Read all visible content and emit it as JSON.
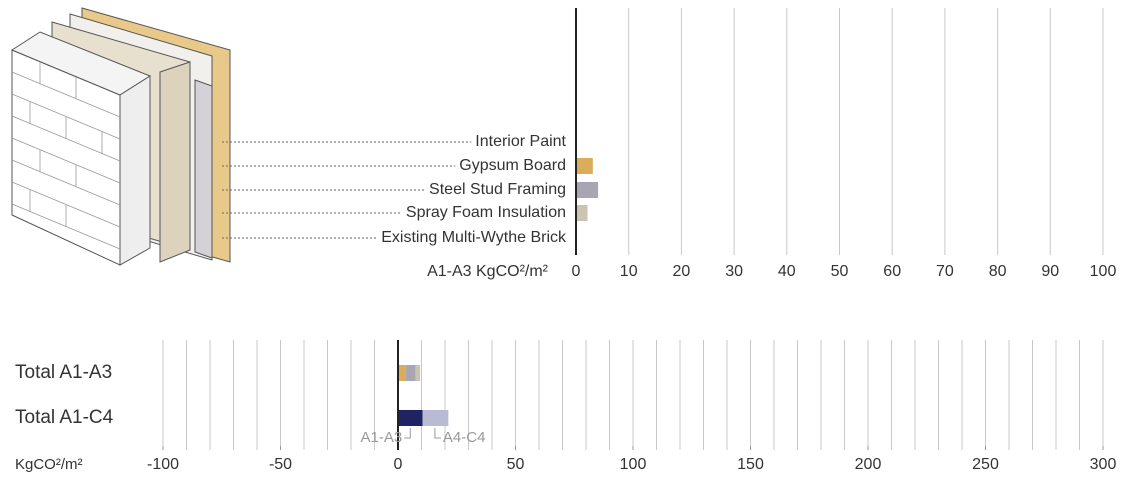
{
  "chart_data": [
    {
      "type": "bar",
      "orientation": "horizontal",
      "categories": [
        "Interior Paint",
        "Gypsum Board",
        "Steel Stud Framing",
        "Spray Foam Insulation",
        "Existing Multi-Wythe Brick"
      ],
      "values": [
        0,
        3,
        4,
        2,
        0
      ],
      "colors": [
        "#d9ad5a",
        "#d9ad5a",
        "#a9a6b3",
        "#cbc3b3",
        "#cbc3b3"
      ],
      "x_label": "A1-A3 KgCO²/m²",
      "xlim": [
        0,
        100
      ],
      "xticks": [
        0,
        10,
        20,
        30,
        40,
        50,
        60,
        70,
        80,
        90,
        100
      ],
      "grid": true
    },
    {
      "type": "stacked_bar",
      "orientation": "horizontal",
      "categories": [
        "Total A1-A3",
        "Total A1-C4"
      ],
      "segments": [
        {
          "color": "#d9ad5a",
          "value": 3
        },
        {
          "color": "#a9a6b3",
          "value": 4
        },
        {
          "color": "#cbc3b3",
          "value": 2
        }
      ],
      "series": [
        {
          "name": "A1-A3",
          "color": "#1f2363",
          "values": [
            null,
            10
          ]
        },
        {
          "name": "A4-C4",
          "color": "#b9bad4",
          "values": [
            null,
            11
          ]
        }
      ],
      "x_label": "KgCO²/m²",
      "xlim": [
        -100,
        300
      ],
      "xticks": [
        -100,
        -50,
        0,
        50,
        100,
        150,
        200,
        250,
        300
      ],
      "minor_xticks": [
        -100,
        -90,
        -80,
        -70,
        -60,
        -50,
        -40,
        -30,
        -20,
        -10,
        0,
        10,
        20,
        30,
        40,
        50,
        60,
        70,
        80,
        90,
        100,
        110,
        120,
        130,
        140,
        150,
        160,
        170,
        180,
        190,
        200,
        210,
        220,
        230,
        240,
        250,
        260,
        270,
        280,
        290,
        300
      ],
      "grid": true
    }
  ]
}
